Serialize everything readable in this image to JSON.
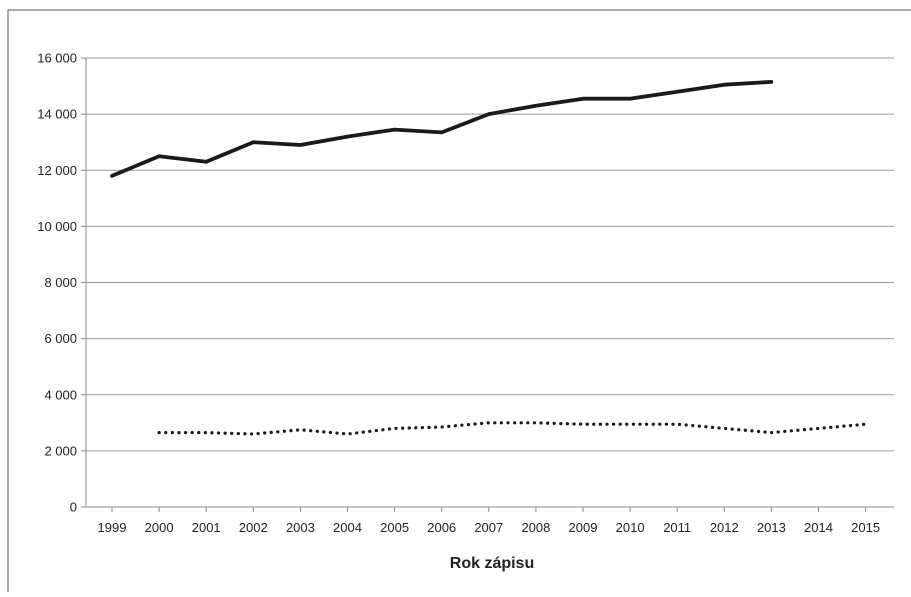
{
  "chart_data": {
    "type": "line",
    "title": "",
    "xlabel": "Rok zápisu",
    "ylabel": "",
    "x": [
      "1999",
      "2000",
      "2001",
      "2002",
      "2003",
      "2004",
      "2005",
      "2006",
      "2007",
      "2008",
      "2009",
      "2010",
      "2011",
      "2012",
      "2013",
      "2014",
      "2015"
    ],
    "y_ticks": [
      "0",
      "2 000",
      "4 000",
      "6 000",
      "8 000",
      "10 000",
      "12 000",
      "14 000",
      "16 000"
    ],
    "ylim": [
      0,
      16000
    ],
    "grid": "horizontal",
    "legend": "none",
    "series": [
      {
        "style": "solid",
        "color": "#1a1a1a",
        "values": [
          11800,
          12500,
          12300,
          13000,
          12900,
          13200,
          13450,
          13350,
          14000,
          14300,
          14550,
          14550,
          14800,
          15050,
          15150,
          null,
          null
        ]
      },
      {
        "style": "dotted",
        "color": "#1a1a1a",
        "values": [
          null,
          2650,
          2650,
          2600,
          2750,
          2600,
          2800,
          2850,
          3000,
          3000,
          2950,
          2950,
          2950,
          2800,
          2650,
          2800,
          2950
        ]
      }
    ]
  }
}
